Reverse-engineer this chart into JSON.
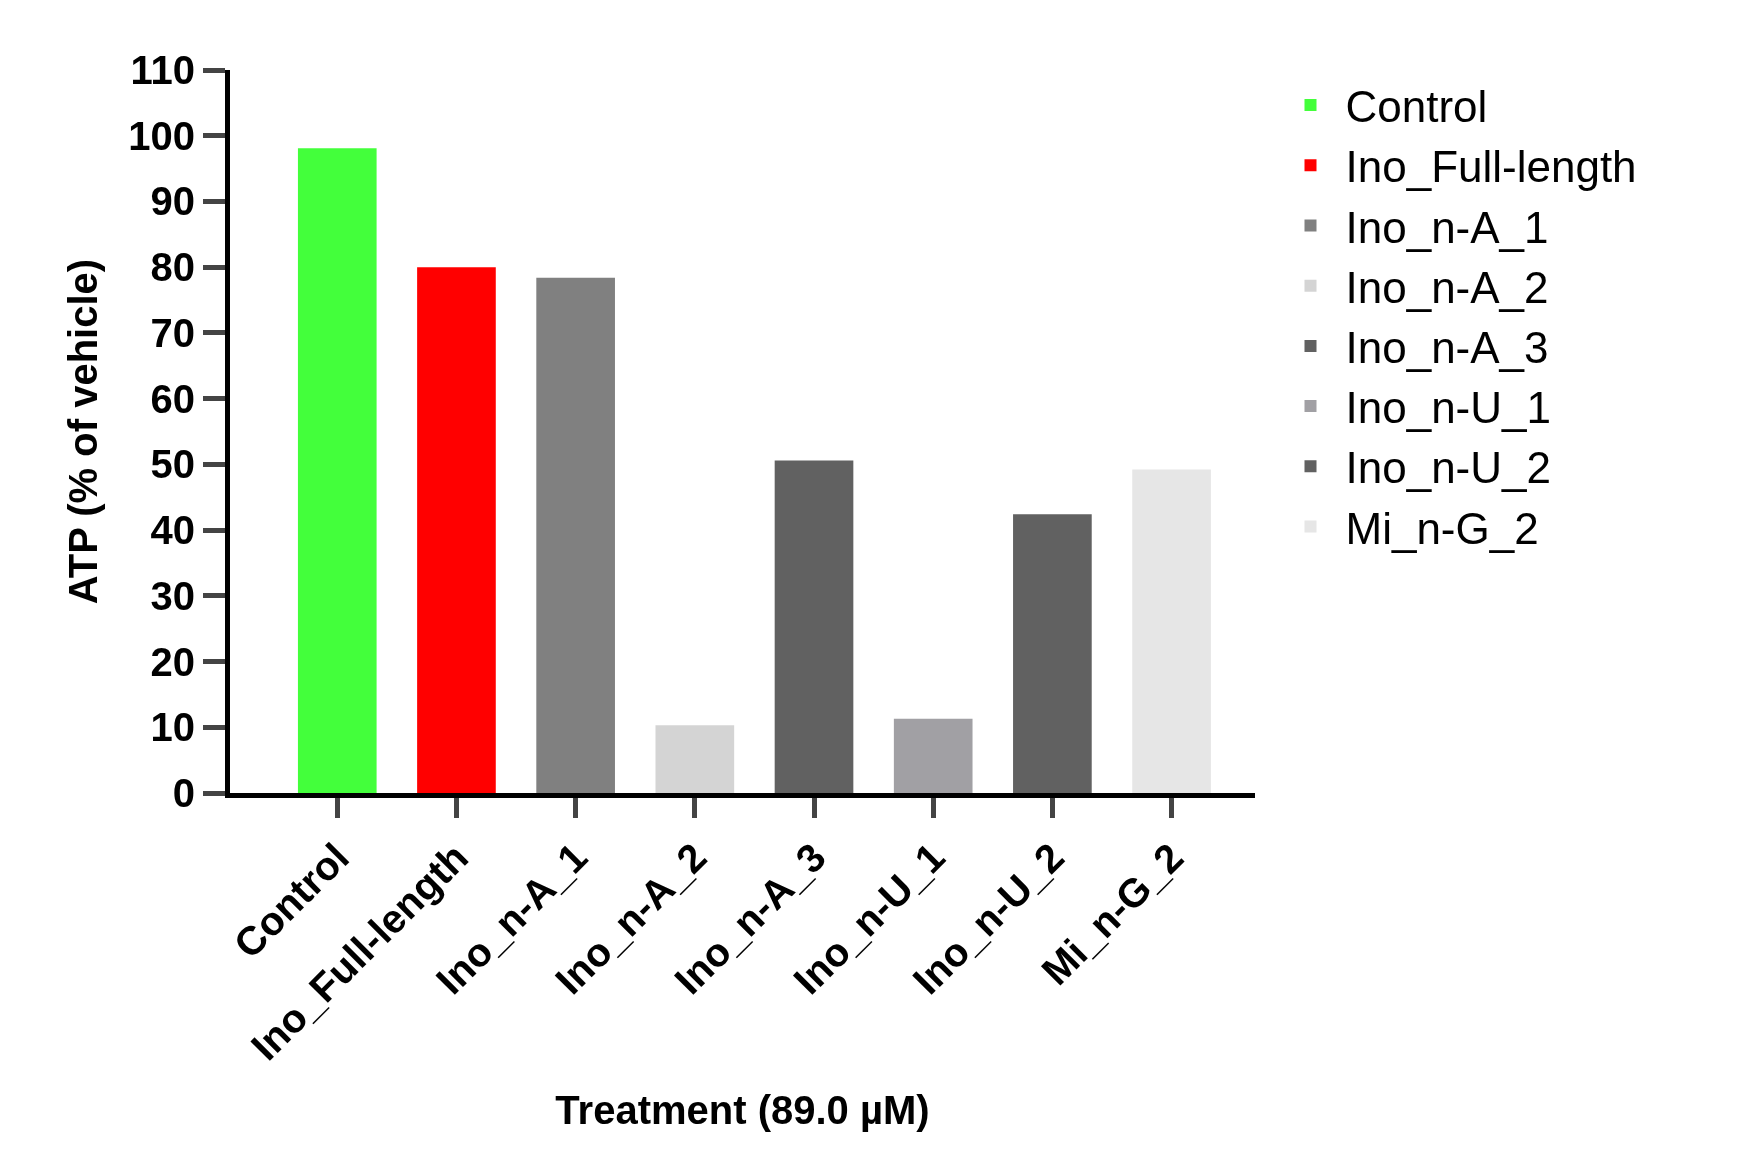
{
  "chart_data": {
    "type": "bar",
    "xlabel": "Treatment (89.0 µM)",
    "ylabel": "ATP (% of vehicle)",
    "categories": [
      "Control",
      "Ino_Full-length",
      "Ino_n-A_1",
      "Ino_n-A_2",
      "Ino_n-A_3",
      "Ino_n-U_1",
      "Ino_n-U_2",
      "Mi_n-G_2"
    ],
    "series": [
      {
        "name": "Control",
        "color": "#43ff3b",
        "values": [
          98.1,
          null,
          null,
          null,
          null,
          null,
          null,
          null
        ]
      },
      {
        "name": "Ino_Full-length",
        "color": "#ff0000",
        "values": [
          null,
          80,
          null,
          null,
          null,
          null,
          null,
          null
        ]
      },
      {
        "name": "Ino_n-A_1",
        "color": "#808080",
        "values": [
          null,
          null,
          78.4,
          null,
          null,
          null,
          null,
          null
        ]
      },
      {
        "name": "Ino_n-A_2",
        "color": "#d4d4d4",
        "values": [
          null,
          null,
          null,
          10.3,
          null,
          null,
          null,
          null
        ]
      },
      {
        "name": "Ino_n-A_3",
        "color": "#616161",
        "values": [
          null,
          null,
          null,
          null,
          50.6,
          null,
          null,
          null
        ]
      },
      {
        "name": "Ino_n-U_1",
        "color": "#a1a0a4",
        "values": [
          null,
          null,
          null,
          null,
          null,
          11.3,
          null,
          null
        ]
      },
      {
        "name": "Ino_n-U_2",
        "color": "#616161",
        "values": [
          null,
          null,
          null,
          null,
          null,
          null,
          42.4,
          null
        ]
      },
      {
        "name": "Mi_n-G_2",
        "color": "#e6e6e6",
        "values": [
          null,
          null,
          null,
          null,
          null,
          null,
          null,
          49.2
        ]
      }
    ],
    "ylim": [
      0,
      110
    ],
    "yticks": [
      0,
      10,
      20,
      30,
      40,
      50,
      60,
      70,
      80,
      90,
      100,
      110
    ],
    "legend": "top right"
  }
}
